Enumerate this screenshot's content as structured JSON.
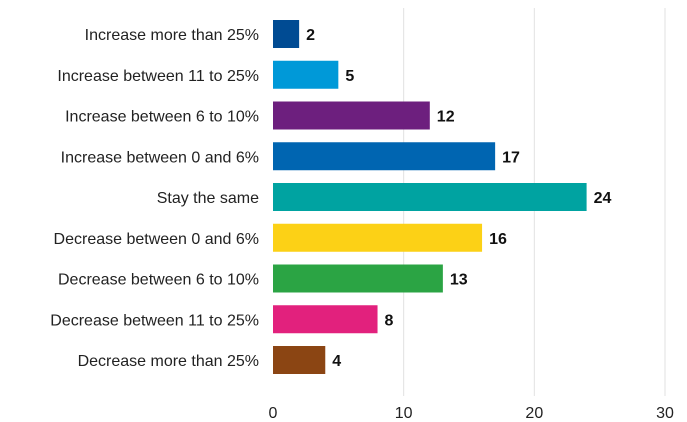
{
  "chart_data": {
    "type": "bar",
    "orientation": "horizontal",
    "categories": [
      "Increase more than 25%",
      "Increase between 11 to 25%",
      "Increase between 6 to 10%",
      "Increase between 0 and 6%",
      "Stay the same",
      "Decrease between 0 and 6%",
      "Decrease between 6 to 10%",
      "Decrease between 11 to 25%",
      "Decrease more than 25%"
    ],
    "values": [
      2,
      5,
      12,
      17,
      24,
      16,
      13,
      8,
      4
    ],
    "colors": [
      "#004b93",
      "#0099d8",
      "#6d1f7e",
      "#0065b1",
      "#00a3a1",
      "#fcd116",
      "#2ba444",
      "#e2217d",
      "#8b4513"
    ],
    "xlim": [
      0,
      30
    ],
    "xticks": [
      0,
      10,
      20,
      30
    ],
    "grid": true,
    "data_labels": true,
    "title": "",
    "xlabel": "",
    "ylabel": ""
  }
}
